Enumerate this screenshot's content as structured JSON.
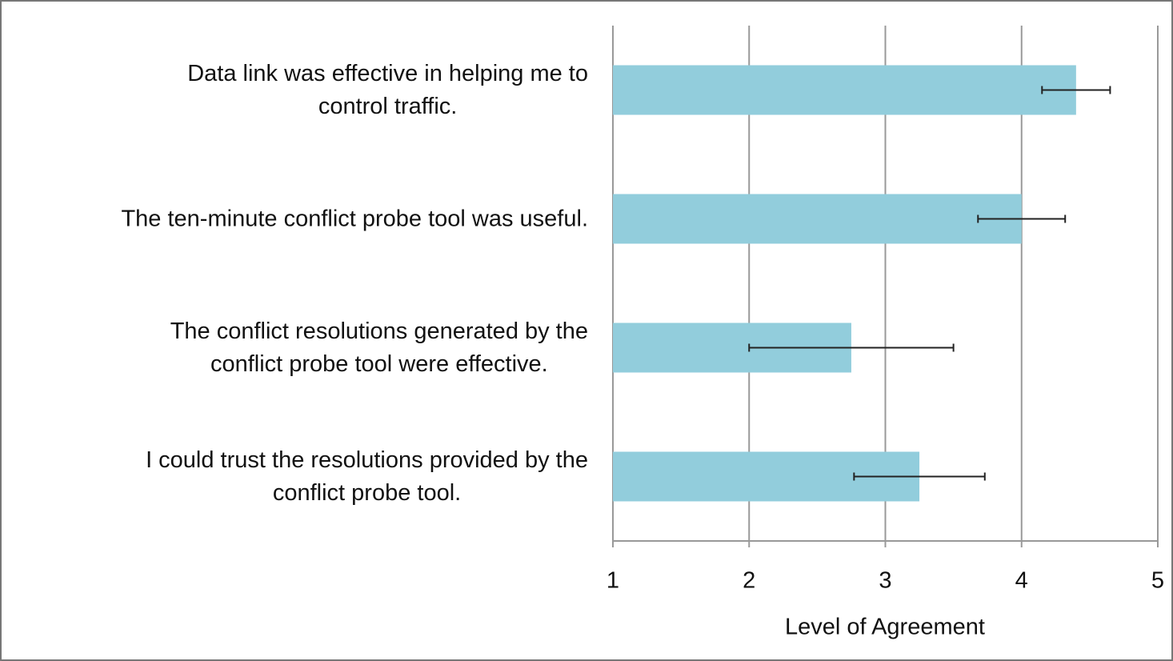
{
  "chart_data": {
    "type": "barh",
    "categories": [
      "Data link was effective in helping me to\ncontrol traffic.",
      "The ten-minute conflict probe tool was useful.",
      "The conflict resolutions generated by the\nconflict probe tool were effective.",
      "I could trust the resolutions provided by the\nconflict probe tool."
    ],
    "values": [
      4.4,
      4.0,
      2.75,
      3.25
    ],
    "errors": [
      0.25,
      0.32,
      0.75,
      0.48
    ],
    "color": "#92cddc",
    "xlabel": "Level of Agreement",
    "xlim": [
      1,
      5
    ],
    "xticks": [
      1,
      2,
      3,
      4,
      5
    ],
    "grid": true
  }
}
